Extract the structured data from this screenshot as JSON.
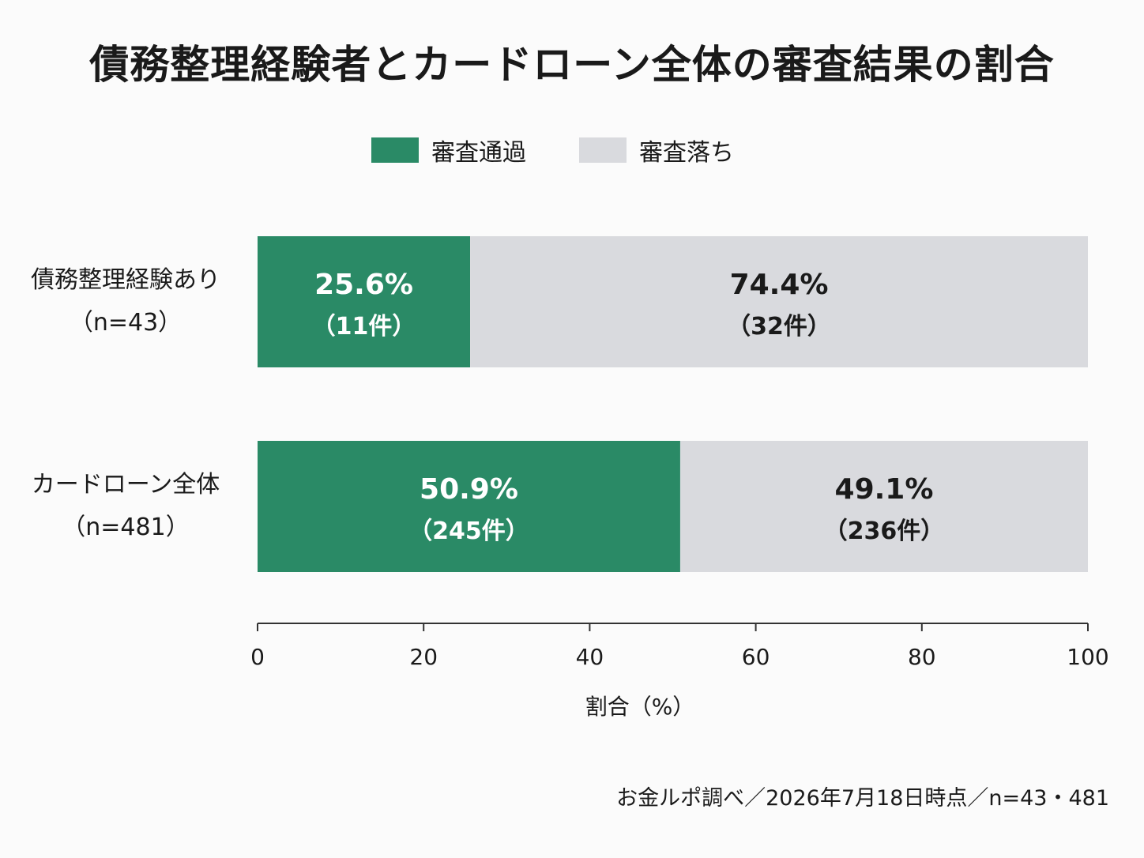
{
  "chart_data": {
    "type": "bar",
    "orientation": "horizontal",
    "stacked": true,
    "title": "債務整理経験者とカードローン全体の審査結果の割合",
    "categories": [
      {
        "name": "債務整理経験あり",
        "n": "（n=43）"
      },
      {
        "name": "カードローン全体",
        "n": "（n=481）"
      }
    ],
    "series": [
      {
        "name": "審査通過",
        "color": "#2a8a66",
        "values": [
          25.6,
          50.9
        ],
        "value_labels": [
          "25.6%",
          "50.9%"
        ],
        "count_labels": [
          "（11件）",
          "（245件）"
        ]
      },
      {
        "name": "審査落ち",
        "color": "#d9dade",
        "values": [
          74.4,
          49.1
        ],
        "value_labels": [
          "74.4%",
          "49.1%"
        ],
        "count_labels": [
          "（32件）",
          "（236件）"
        ]
      }
    ],
    "xlabel": "割合（%）",
    "xlim": [
      0,
      100
    ],
    "xticks": [
      "0",
      "20",
      "40",
      "60",
      "80",
      "100"
    ],
    "legend_position": "top-center",
    "grid": false
  },
  "source": "お金ルポ調べ／2026年7月18日時点／n=43・481"
}
